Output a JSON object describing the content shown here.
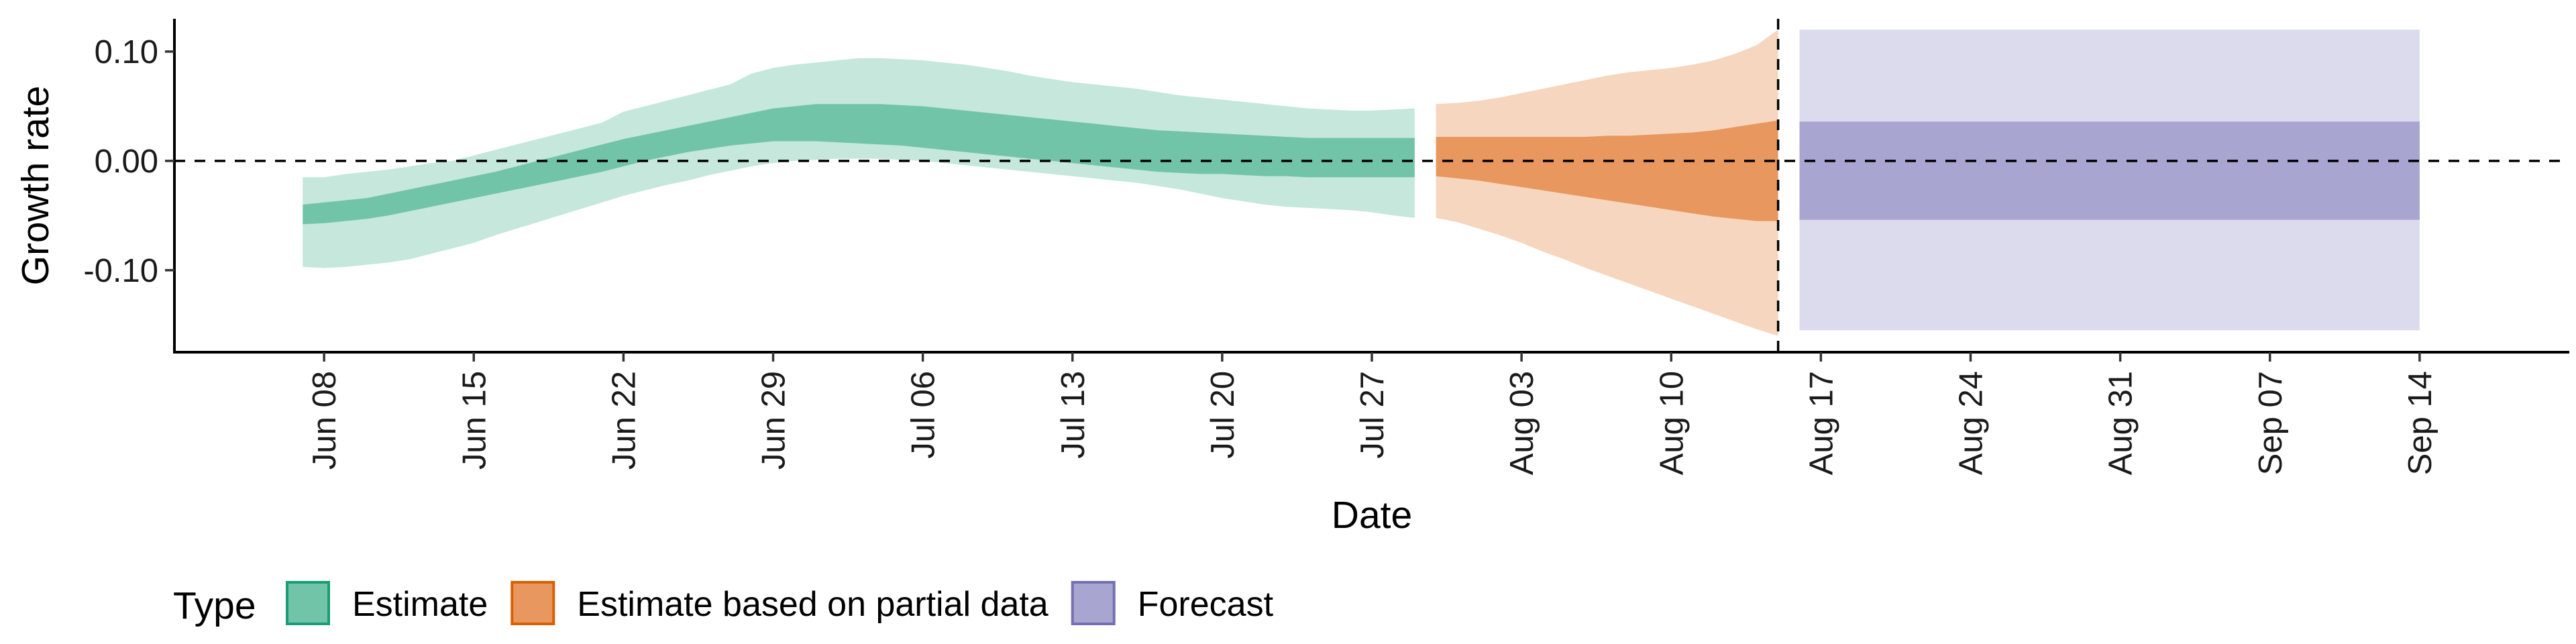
{
  "chart_data": {
    "type": "area",
    "title": "",
    "xlabel": "Date",
    "ylabel": "Growth rate",
    "x_ticks": [
      "2020-06-08",
      "2020-06-15",
      "2020-06-22",
      "2020-06-29",
      "2020-07-06",
      "2020-07-13",
      "2020-07-20",
      "2020-07-27",
      "2020-08-03",
      "2020-08-10",
      "2020-08-17",
      "2020-08-24",
      "2020-08-31",
      "2020-09-07",
      "2020-09-14"
    ],
    "x_tick_labels": [
      "Jun 08",
      "Jun 15",
      "Jun 22",
      "Jun 29",
      "Jul 06",
      "Jul 13",
      "Jul 20",
      "Jul 27",
      "Aug 03",
      "Aug 10",
      "Aug 17",
      "Aug 24",
      "Aug 31",
      "Sep 07",
      "Sep 14"
    ],
    "xlim": [
      "2020-06-01",
      "2020-09-21"
    ],
    "y_ticks": [
      0.1,
      0.0,
      -0.1
    ],
    "y_tick_labels": [
      "0.10",
      "0.00",
      "-0.10"
    ],
    "ylim": [
      -0.175,
      0.13
    ],
    "grid": false,
    "hline": 0.0,
    "vline": "2020-08-15",
    "legend": {
      "title": "Type",
      "position": "bottom",
      "entries": [
        {
          "label": "Estimate",
          "fill": "#72c4a8",
          "stroke": "#1b9e77"
        },
        {
          "label": "Estimate based on partial data",
          "fill": "#e8975e",
          "stroke": "#d95f02"
        },
        {
          "label": "Forecast",
          "fill": "#a8a6d0",
          "stroke": "#7570b3"
        }
      ]
    },
    "series": [
      {
        "name": "Estimate",
        "inner_fill": "#72c4a8",
        "outer_fill": "#c5e7dc",
        "x": [
          "2020-06-07",
          "2020-06-08",
          "2020-06-09",
          "2020-06-10",
          "2020-06-11",
          "2020-06-12",
          "2020-06-13",
          "2020-06-14",
          "2020-06-15",
          "2020-06-16",
          "2020-06-17",
          "2020-06-18",
          "2020-06-19",
          "2020-06-20",
          "2020-06-21",
          "2020-06-22",
          "2020-06-23",
          "2020-06-24",
          "2020-06-25",
          "2020-06-26",
          "2020-06-27",
          "2020-06-28",
          "2020-06-29",
          "2020-06-30",
          "2020-07-01",
          "2020-07-02",
          "2020-07-03",
          "2020-07-04",
          "2020-07-05",
          "2020-07-06",
          "2020-07-07",
          "2020-07-08",
          "2020-07-09",
          "2020-07-10",
          "2020-07-11",
          "2020-07-12",
          "2020-07-13",
          "2020-07-14",
          "2020-07-15",
          "2020-07-16",
          "2020-07-17",
          "2020-07-18",
          "2020-07-19",
          "2020-07-20",
          "2020-07-21",
          "2020-07-22",
          "2020-07-23",
          "2020-07-24",
          "2020-07-25",
          "2020-07-26",
          "2020-07-27",
          "2020-07-28",
          "2020-07-29"
        ],
        "outer_upper": [
          -0.015,
          -0.015,
          -0.012,
          -0.01,
          -0.008,
          -0.005,
          -0.002,
          0.0,
          0.005,
          0.01,
          0.015,
          0.02,
          0.025,
          0.03,
          0.035,
          0.045,
          0.05,
          0.055,
          0.06,
          0.065,
          0.07,
          0.08,
          0.085,
          0.088,
          0.09,
          0.092,
          0.094,
          0.094,
          0.093,
          0.092,
          0.09,
          0.088,
          0.085,
          0.082,
          0.078,
          0.075,
          0.072,
          0.07,
          0.068,
          0.066,
          0.063,
          0.06,
          0.058,
          0.056,
          0.054,
          0.052,
          0.05,
          0.048,
          0.047,
          0.046,
          0.046,
          0.047,
          0.048
        ],
        "inner_upper": [
          -0.04,
          -0.038,
          -0.036,
          -0.034,
          -0.03,
          -0.026,
          -0.022,
          -0.018,
          -0.014,
          -0.01,
          -0.005,
          0.0,
          0.005,
          0.01,
          0.015,
          0.02,
          0.024,
          0.028,
          0.032,
          0.036,
          0.04,
          0.044,
          0.048,
          0.05,
          0.052,
          0.052,
          0.052,
          0.052,
          0.051,
          0.05,
          0.048,
          0.046,
          0.044,
          0.042,
          0.04,
          0.038,
          0.036,
          0.034,
          0.032,
          0.03,
          0.028,
          0.027,
          0.026,
          0.025,
          0.024,
          0.023,
          0.022,
          0.021,
          0.021,
          0.021,
          0.021,
          0.021,
          0.021
        ],
        "inner_lower": [
          -0.058,
          -0.057,
          -0.055,
          -0.053,
          -0.05,
          -0.046,
          -0.042,
          -0.038,
          -0.034,
          -0.03,
          -0.026,
          -0.022,
          -0.018,
          -0.014,
          -0.01,
          -0.005,
          0.0,
          0.004,
          0.008,
          0.011,
          0.014,
          0.016,
          0.018,
          0.018,
          0.018,
          0.017,
          0.016,
          0.015,
          0.014,
          0.012,
          0.01,
          0.008,
          0.006,
          0.004,
          0.002,
          0.0,
          -0.002,
          -0.004,
          -0.006,
          -0.008,
          -0.01,
          -0.011,
          -0.012,
          -0.012,
          -0.013,
          -0.014,
          -0.014,
          -0.015,
          -0.015,
          -0.015,
          -0.015,
          -0.015,
          -0.015
        ],
        "outer_lower": [
          -0.097,
          -0.098,
          -0.097,
          -0.095,
          -0.093,
          -0.09,
          -0.085,
          -0.08,
          -0.075,
          -0.068,
          -0.062,
          -0.056,
          -0.05,
          -0.044,
          -0.038,
          -0.032,
          -0.027,
          -0.022,
          -0.018,
          -0.013,
          -0.009,
          -0.005,
          -0.002,
          0.0,
          0.001,
          0.002,
          0.002,
          0.002,
          0.001,
          0.0,
          -0.002,
          -0.004,
          -0.006,
          -0.008,
          -0.01,
          -0.012,
          -0.014,
          -0.016,
          -0.018,
          -0.02,
          -0.023,
          -0.026,
          -0.03,
          -0.034,
          -0.037,
          -0.04,
          -0.042,
          -0.043,
          -0.044,
          -0.045,
          -0.047,
          -0.05,
          -0.052
        ]
      },
      {
        "name": "Estimate based on partial data",
        "inner_fill": "#e8975e",
        "outer_fill": "#f6d6be",
        "x": [
          "2020-07-30",
          "2020-07-31",
          "2020-08-01",
          "2020-08-02",
          "2020-08-03",
          "2020-08-04",
          "2020-08-05",
          "2020-08-06",
          "2020-08-07",
          "2020-08-08",
          "2020-08-09",
          "2020-08-10",
          "2020-08-11",
          "2020-08-12",
          "2020-08-13",
          "2020-08-14",
          "2020-08-15"
        ],
        "outer_upper": [
          0.052,
          0.053,
          0.055,
          0.058,
          0.062,
          0.066,
          0.07,
          0.074,
          0.078,
          0.081,
          0.083,
          0.085,
          0.088,
          0.092,
          0.098,
          0.106,
          0.12
        ],
        "inner_upper": [
          0.022,
          0.022,
          0.022,
          0.022,
          0.022,
          0.022,
          0.022,
          0.022,
          0.023,
          0.023,
          0.024,
          0.025,
          0.026,
          0.028,
          0.031,
          0.034,
          0.037
        ],
        "inner_lower": [
          -0.014,
          -0.016,
          -0.018,
          -0.021,
          -0.024,
          -0.027,
          -0.03,
          -0.033,
          -0.036,
          -0.039,
          -0.042,
          -0.045,
          -0.048,
          -0.051,
          -0.053,
          -0.055,
          -0.055
        ],
        "outer_lower": [
          -0.052,
          -0.056,
          -0.062,
          -0.068,
          -0.075,
          -0.083,
          -0.09,
          -0.098,
          -0.105,
          -0.112,
          -0.119,
          -0.126,
          -0.133,
          -0.14,
          -0.147,
          -0.154,
          -0.16
        ]
      },
      {
        "name": "Forecast",
        "inner_fill": "#a8a6d0",
        "outer_fill": "#dcdbed",
        "x": [
          "2020-08-16",
          "2020-09-14"
        ],
        "outer_upper": [
          0.12,
          0.12
        ],
        "inner_upper": [
          0.036,
          0.036
        ],
        "inner_lower": [
          -0.054,
          -0.054
        ],
        "outer_lower": [
          -0.155,
          -0.155
        ]
      }
    ]
  }
}
